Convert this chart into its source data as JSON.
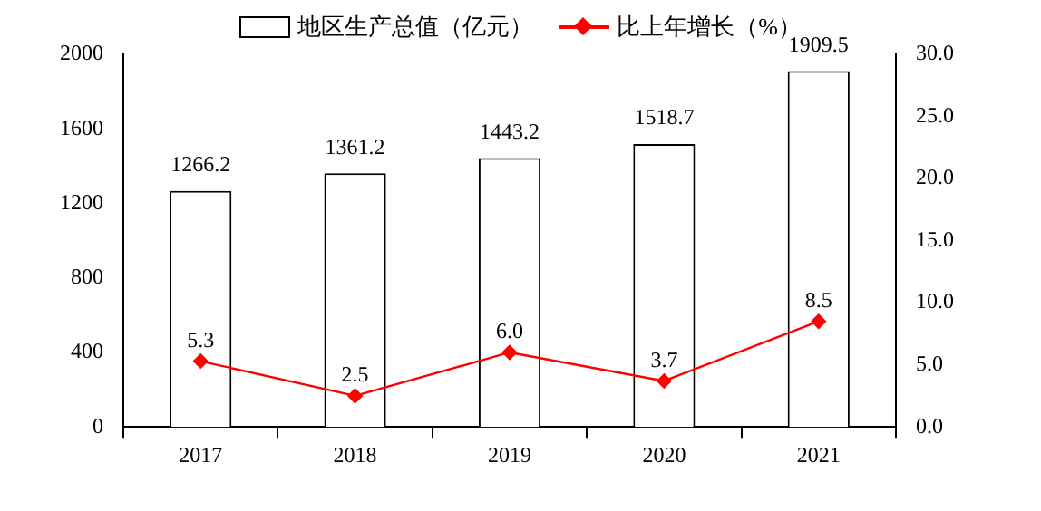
{
  "chart_data": {
    "type": "bar",
    "categories": [
      "2017",
      "2018",
      "2019",
      "2020",
      "2021"
    ],
    "series": [
      {
        "name": "地区生产总值（亿元）",
        "color": "#000000",
        "values": [
          1266.2,
          1361.2,
          1443.2,
          1518.7,
          1909.5
        ]
      },
      {
        "name": "比上年增长（%）",
        "type": "line",
        "axis": "y2",
        "color": "#ff0000",
        "values": [
          5.3,
          2.5,
          6.0,
          3.7,
          8.5
        ]
      }
    ],
    "ylim": [
      0,
      2000
    ],
    "yticks": [
      0,
      400,
      800,
      1200,
      1600,
      2000
    ],
    "y2lim": [
      0,
      30
    ],
    "y2ticks": [
      {
        "value": 0,
        "label": "0.0"
      },
      {
        "value": 5,
        "label": "5.0"
      },
      {
        "value": 10,
        "label": "10.0"
      },
      {
        "value": 15,
        "label": "15.0"
      },
      {
        "value": 20,
        "label": "20.0"
      },
      {
        "value": 25,
        "label": "25.0"
      },
      {
        "value": 30,
        "label": "30.0"
      }
    ],
    "value_labels": [
      [
        "1266.2",
        "1361.2",
        "1443.2",
        "1518.7",
        "1909.5"
      ],
      [
        "5.3",
        "2.5",
        "6.0",
        "3.7",
        "8.5"
      ]
    ],
    "marker": "diamond",
    "line_style": "solid",
    "legend": "top",
    "grid": false
  }
}
